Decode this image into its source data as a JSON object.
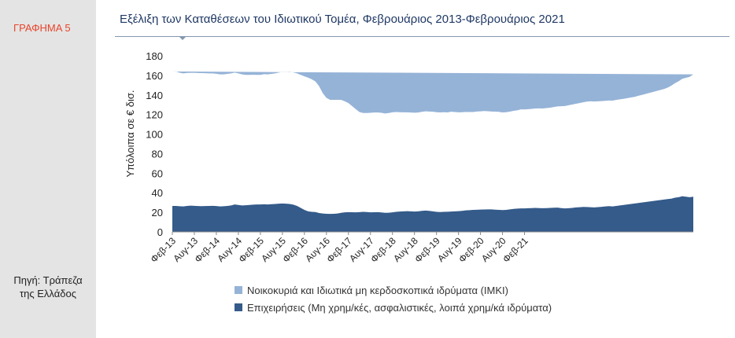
{
  "figure_label": "ΓΡΑΦΗΜΑ 5",
  "source": [
    "Πηγή: Τράπεζα",
    "της Ελλάδος"
  ],
  "chart_data": {
    "type": "area",
    "stacked": true,
    "title": "Εξέλιξη των Καταθέσεων του Ιδιωτικού Τομέα, Φεβρουάριος 2013-Φεβρουάριος 2021",
    "ylabel": "Υπόλοιπα σε € δισ.",
    "xlabel": "",
    "ylim": [
      0,
      180
    ],
    "yticks": [
      0,
      20,
      40,
      60,
      80,
      100,
      120,
      140,
      160,
      180
    ],
    "xtick_labels": [
      "Φεβ-13",
      "Αυγ-13",
      "Φεβ-14",
      "Αυγ-14",
      "Φεβ-15",
      "Αυγ-15",
      "Φεβ-16",
      "Αυγ-16",
      "Φεβ-17",
      "Αυγ-17",
      "Φεβ-18",
      "Αυγ-18",
      "Φεβ-19",
      "Αυγ-19",
      "Φεβ-20",
      "Αυγ-20",
      "Φεβ-21"
    ],
    "grid": false,
    "legend_position": "bottom",
    "x_start": "2013-02",
    "x_end": "2021-02",
    "x_frequency": "monthly",
    "series": [
      {
        "name": "Επιχειρήσεις (Μη χρημ/κές, ασφαλιστικές, λοιπά χρημ/κά ιδρύματα)",
        "color": "#345b8a",
        "values": [
          26.5,
          26.5,
          26.2,
          26.0,
          26.5,
          26.8,
          26.6,
          26.4,
          26.3,
          26.4,
          26.5,
          26.6,
          26.4,
          26.0,
          26.2,
          26.5,
          27.0,
          28.0,
          27.5,
          27.0,
          27.2,
          27.5,
          27.8,
          28.0,
          28.0,
          28.2,
          28.0,
          28.3,
          28.5,
          28.8,
          29.0,
          28.8,
          28.5,
          27.8,
          26.5,
          24.5,
          22.5,
          21.0,
          20.5,
          20.3,
          19.3,
          18.8,
          18.5,
          18.4,
          18.5,
          18.8,
          19.5,
          20.0,
          20.2,
          20.1,
          20.0,
          20.2,
          20.5,
          20.3,
          20.0,
          20.1,
          20.2,
          19.9,
          19.5,
          19.6,
          20.0,
          20.5,
          20.8,
          21.0,
          21.2,
          21.0,
          20.8,
          21.0,
          21.5,
          21.8,
          21.5,
          21.0,
          20.5,
          20.3,
          20.5,
          20.6,
          20.8,
          21.0,
          21.2,
          21.5,
          22.0,
          22.2,
          22.5,
          22.6,
          22.8,
          22.9,
          23.0,
          23.0,
          22.7,
          22.5,
          22.3,
          22.5,
          23.0,
          23.5,
          23.8,
          24.0,
          24.0,
          24.2,
          24.3,
          24.5,
          24.3,
          24.2,
          24.3,
          24.5,
          24.7,
          24.8,
          24.3,
          24.0,
          24.2,
          24.5,
          25.0,
          25.2,
          25.5,
          25.4,
          25.2,
          25.0,
          25.3,
          25.6,
          26.0,
          26.3,
          26.0,
          26.5,
          27.0,
          27.5,
          28.0,
          28.5,
          29.0,
          29.5,
          30.0,
          30.5,
          31.0,
          31.5,
          32.0,
          32.5,
          33.0,
          33.5,
          34.0,
          35.0,
          35.5,
          36.5,
          36.0,
          35.5,
          36.0
        ]
      },
      {
        "name": "Νοικοκυριά και Ιδιωτικά μη κερδοσκοπικά ιδρύματα (ΙΜΚΙ)",
        "color": "#95b3d7",
        "values": [
          137.5,
          137.5,
          136.5,
          136.0,
          136.0,
          135.8,
          136.0,
          136.0,
          136.0,
          135.8,
          135.5,
          135.4,
          135.2,
          135.0,
          134.8,
          135.0,
          135.0,
          134.8,
          134.5,
          134.0,
          133.3,
          133.0,
          132.8,
          132.5,
          132.5,
          133.0,
          133.0,
          133.2,
          133.5,
          134.0,
          134.5,
          134.5,
          135.0,
          135.2,
          135.5,
          136.0,
          136.5,
          136.7,
          135.5,
          133.5,
          129.7,
          123.0,
          118.5,
          116.6,
          116.5,
          116.2,
          115.5,
          113.5,
          111.5,
          108.5,
          105.5,
          102.3,
          101.0,
          101.2,
          101.7,
          101.9,
          101.8,
          101.8,
          101.5,
          101.9,
          102.2,
          102.0,
          101.5,
          101.2,
          101.0,
          101.0,
          101.0,
          101.0,
          101.2,
          101.4,
          101.5,
          101.8,
          101.8,
          101.8,
          101.8,
          101.5,
          102.0,
          101.5,
          101.0,
          100.8,
          100.5,
          100.3,
          100.0,
          100.4,
          100.4,
          100.6,
          100.3,
          100.0,
          100.2,
          100.2,
          99.8,
          99.8,
          99.9,
          100.2,
          100.5,
          101.3,
          101.2,
          101.3,
          101.5,
          101.7,
          102.0,
          102.0,
          102.3,
          102.5,
          103.0,
          103.5,
          104.2,
          104.7,
          105.3,
          105.7,
          106.0,
          106.5,
          107.0,
          107.8,
          108.3,
          108.3,
          108.2,
          108.1,
          108.0,
          108.0,
          108.2,
          108.4,
          108.5,
          108.5,
          108.7,
          108.9,
          109.0,
          109.6,
          110.0,
          110.5,
          111.0,
          111.5,
          112.0,
          112.5,
          113.0,
          114.0,
          115.5,
          117.0,
          118.5,
          120.0,
          121.5,
          123.0,
          125.0,
          126.5,
          127.5
        ]
      }
    ]
  }
}
